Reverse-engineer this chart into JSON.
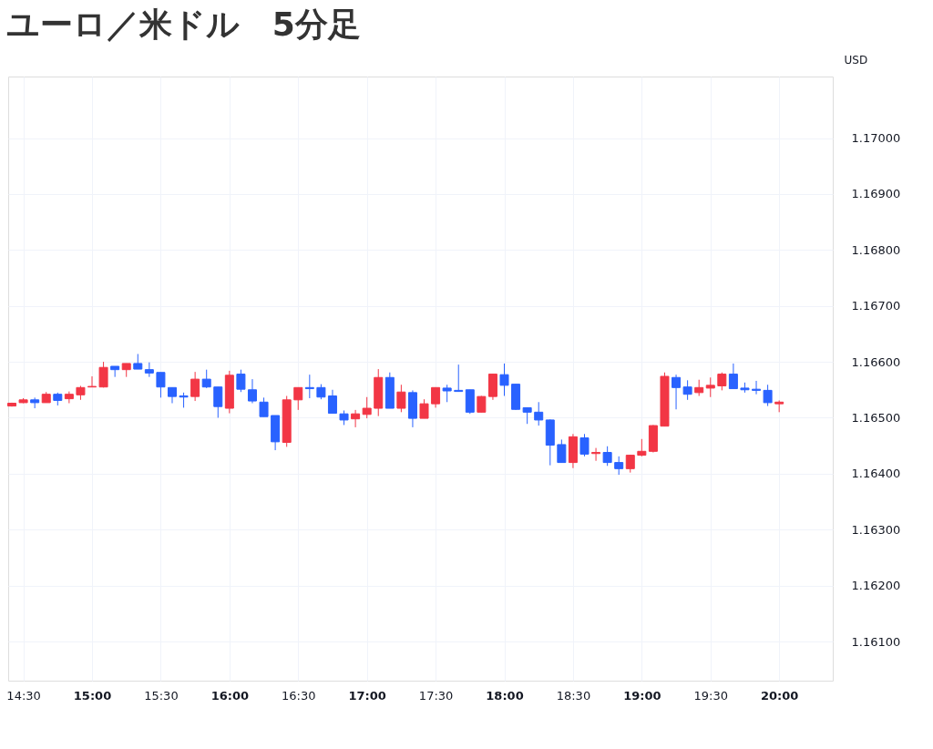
{
  "chart_data": {
    "type": "candlestick",
    "title": "ユーロ／米ドル　5分足",
    "ylabel": "USD",
    "x": [
      14.41667,
      14.5,
      14.58333,
      14.66667,
      14.75,
      14.83333,
      14.91667,
      15.0,
      15.08333,
      15.16667,
      15.25,
      15.33333,
      15.41667,
      15.5,
      15.58333,
      15.66667,
      15.75,
      15.83333,
      15.91667,
      16.0,
      16.08333,
      16.16667,
      16.25,
      16.33333,
      16.41667,
      16.5,
      16.58333,
      16.66667,
      16.75,
      16.83333,
      16.91667,
      17.0,
      17.08333,
      17.16667,
      17.25,
      17.33333,
      17.41667,
      17.5,
      17.58333,
      17.66667,
      17.75,
      17.83333,
      17.91667,
      18.0,
      18.08333,
      18.16667,
      18.25,
      18.33333,
      18.41667,
      18.5,
      18.58333,
      18.66667,
      18.75,
      18.83333,
      18.91667,
      19.0,
      19.08333,
      19.16667,
      19.25,
      19.33333,
      19.41667,
      19.5,
      19.58333,
      19.66667,
      19.75,
      19.83333,
      19.91667,
      20.0
    ],
    "ohlc": [
      [
        1.16521,
        1.16527,
        1.1652,
        1.16526
      ],
      [
        1.16527,
        1.16535,
        1.16526,
        1.16532
      ],
      [
        1.16532,
        1.16536,
        1.16517,
        1.16527
      ],
      [
        1.16527,
        1.16546,
        1.16527,
        1.16542
      ],
      [
        1.16542,
        1.16545,
        1.16522,
        1.16531
      ],
      [
        1.16534,
        1.16547,
        1.16526,
        1.16542
      ],
      [
        1.16541,
        1.16557,
        1.16532,
        1.16554
      ],
      [
        1.16555,
        1.16574,
        1.16555,
        1.16556
      ],
      [
        1.16555,
        1.166,
        1.16554,
        1.1659
      ],
      [
        1.16592,
        1.16592,
        1.16573,
        1.16586
      ],
      [
        1.16586,
        1.16597,
        1.16573,
        1.16597
      ],
      [
        1.16597,
        1.16614,
        1.16587,
        1.16587
      ],
      [
        1.16586,
        1.16599,
        1.16573,
        1.1658
      ],
      [
        1.16581,
        1.16581,
        1.16536,
        1.16555
      ],
      [
        1.16554,
        1.16554,
        1.16526,
        1.16538
      ],
      [
        1.16539,
        1.16545,
        1.16518,
        1.16537
      ],
      [
        1.16538,
        1.16582,
        1.1653,
        1.16569
      ],
      [
        1.16569,
        1.16586,
        1.16553,
        1.16555
      ],
      [
        1.16555,
        1.16555,
        1.165,
        1.1652
      ],
      [
        1.16517,
        1.16584,
        1.16508,
        1.16576
      ],
      [
        1.16578,
        1.16586,
        1.16546,
        1.16551
      ],
      [
        1.1655,
        1.16569,
        1.16526,
        1.1653
      ],
      [
        1.16528,
        1.16536,
        1.16502,
        1.16502
      ],
      [
        1.16504,
        1.16504,
        1.16442,
        1.16457
      ],
      [
        1.16456,
        1.16539,
        1.16448,
        1.16532
      ],
      [
        1.16532,
        1.16554,
        1.16514,
        1.16554
      ],
      [
        1.16554,
        1.16577,
        1.16535,
        1.16552
      ],
      [
        1.16554,
        1.1656,
        1.16533,
        1.16537
      ],
      [
        1.16539,
        1.1655,
        1.16508,
        1.16508
      ],
      [
        1.16507,
        1.16513,
        1.16487,
        1.16496
      ],
      [
        1.16498,
        1.16514,
        1.16483,
        1.16507
      ],
      [
        1.16506,
        1.16537,
        1.16499,
        1.16517
      ],
      [
        1.16517,
        1.16587,
        1.16503,
        1.16572
      ],
      [
        1.16572,
        1.16581,
        1.16517,
        1.16517
      ],
      [
        1.16517,
        1.16559,
        1.1651,
        1.16546
      ],
      [
        1.16545,
        1.16549,
        1.16483,
        1.16499
      ],
      [
        1.16499,
        1.16533,
        1.16499,
        1.16525
      ],
      [
        1.16525,
        1.16554,
        1.16518,
        1.16554
      ],
      [
        1.16553,
        1.16559,
        1.16528,
        1.16548
      ],
      [
        1.16549,
        1.16595,
        1.16547,
        1.16547
      ],
      [
        1.1655,
        1.1655,
        1.16507,
        1.1651
      ],
      [
        1.1651,
        1.16539,
        1.1651,
        1.16538
      ],
      [
        1.16538,
        1.16578,
        1.16532,
        1.16578
      ],
      [
        1.16577,
        1.16597,
        1.16539,
        1.16558
      ],
      [
        1.1656,
        1.1656,
        1.16514,
        1.16515
      ],
      [
        1.16518,
        1.16518,
        1.16489,
        1.1651
      ],
      [
        1.1651,
        1.16528,
        1.16486,
        1.16496
      ],
      [
        1.16496,
        1.16497,
        1.16415,
        1.16451
      ],
      [
        1.16452,
        1.16461,
        1.1642,
        1.1642
      ],
      [
        1.1642,
        1.16471,
        1.1641,
        1.16466
      ],
      [
        1.16464,
        1.16471,
        1.16431,
        1.16435
      ],
      [
        1.16436,
        1.16446,
        1.16423,
        1.16438
      ],
      [
        1.16438,
        1.16449,
        1.16414,
        1.1642
      ],
      [
        1.1642,
        1.16431,
        1.16398,
        1.16409
      ],
      [
        1.16409,
        1.16434,
        1.16402,
        1.16433
      ],
      [
        1.16433,
        1.16462,
        1.16431,
        1.1644
      ],
      [
        1.1644,
        1.16487,
        1.16438,
        1.16486
      ],
      [
        1.16485,
        1.16581,
        1.16485,
        1.16574
      ],
      [
        1.16572,
        1.16577,
        1.16515,
        1.16554
      ],
      [
        1.16555,
        1.16567,
        1.16532,
        1.16542
      ],
      [
        1.16545,
        1.16568,
        1.16539,
        1.16554
      ],
      [
        1.16553,
        1.16572,
        1.16537,
        1.16558
      ],
      [
        1.16557,
        1.16581,
        1.16549,
        1.16578
      ],
      [
        1.16578,
        1.16597,
        1.16552,
        1.16552
      ],
      [
        1.16553,
        1.16563,
        1.16545,
        1.1655
      ],
      [
        1.16551,
        1.16566,
        1.16542,
        1.16549
      ],
      [
        1.16549,
        1.16559,
        1.16521,
        1.16527
      ],
      [
        1.16525,
        1.16531,
        1.1651,
        1.16528
      ]
    ],
    "colors": [
      "#f23645",
      "#f23645",
      "#2962ff",
      "#f23645",
      "#2962ff",
      "#f23645",
      "#f23645",
      "#f23645",
      "#f23645",
      "#2962ff",
      "#f23645",
      "#2962ff",
      "#2962ff",
      "#2962ff",
      "#2962ff",
      "#2962ff",
      "#f23645",
      "#2962ff",
      "#2962ff",
      "#f23645",
      "#2962ff",
      "#2962ff",
      "#2962ff",
      "#2962ff",
      "#f23645",
      "#f23645",
      "#2962ff",
      "#2962ff",
      "#2962ff",
      "#2962ff",
      "#f23645",
      "#f23645",
      "#f23645",
      "#2962ff",
      "#f23645",
      "#2962ff",
      "#f23645",
      "#f23645",
      "#2962ff",
      "#2962ff",
      "#2962ff",
      "#f23645",
      "#f23645",
      "#2962ff",
      "#2962ff",
      "#2962ff",
      "#2962ff",
      "#2962ff",
      "#2962ff",
      "#f23645",
      "#2962ff",
      "#f23645",
      "#2962ff",
      "#2962ff",
      "#f23645",
      "#f23645",
      "#f23645",
      "#f23645",
      "#2962ff",
      "#2962ff",
      "#f23645",
      "#f23645",
      "#f23645",
      "#2962ff",
      "#2962ff",
      "#2962ff",
      "#2962ff",
      "#f23645"
    ],
    "xlim": [
      14.39,
      20.39
    ],
    "xticks": [
      {
        "value": 14.5,
        "label": "14:30"
      },
      {
        "value": 15,
        "label": "15:00"
      },
      {
        "value": 15.5,
        "label": "15:30"
      },
      {
        "value": 16,
        "label": "16:00"
      },
      {
        "value": 16.5,
        "label": "16:30"
      },
      {
        "value": 17,
        "label": "17:00"
      },
      {
        "value": 17.5,
        "label": "17:30"
      },
      {
        "value": 18,
        "label": "18:00"
      },
      {
        "value": 18.5,
        "label": "18:30"
      },
      {
        "value": 19,
        "label": "19:00"
      },
      {
        "value": 19.5,
        "label": "19:30"
      },
      {
        "value": 20,
        "label": "20:00"
      }
    ],
    "ylim": [
      1.1603,
      1.1711
    ],
    "yticks": [
      {
        "value": 1.161,
        "label": "1.16100"
      },
      {
        "value": 1.162,
        "label": "1.16200"
      },
      {
        "value": 1.163,
        "label": "1.16300"
      },
      {
        "value": 1.164,
        "label": "1.16400"
      },
      {
        "value": 1.165,
        "label": "1.16500"
      },
      {
        "value": 1.166,
        "label": "1.16600"
      },
      {
        "value": 1.167,
        "label": "1.16700"
      },
      {
        "value": 1.168,
        "label": "1.16800"
      },
      {
        "value": 1.169,
        "label": "1.16900"
      },
      {
        "value": 1.17,
        "label": "1.17000"
      }
    ],
    "grid": true
  }
}
